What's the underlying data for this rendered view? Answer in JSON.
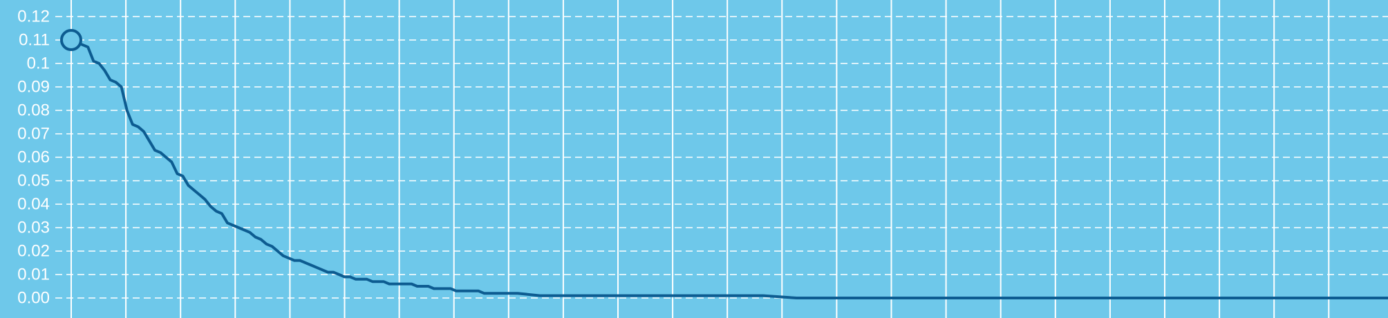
{
  "chart_data": {
    "type": "line",
    "title": "",
    "xlabel": "",
    "ylabel": "",
    "y_tick_labels": [
      "0.00",
      "0.01",
      "0.02",
      "0.03",
      "0.04",
      "0.05",
      "0.06",
      "0.07",
      "0.08",
      "0.09",
      "0.1",
      "0.11",
      "0.12"
    ],
    "ylim": [
      0,
      0.12
    ],
    "xlim": [
      0,
      236
    ],
    "x_gridline_count": 24,
    "grid": true,
    "legend": "none",
    "colors": {
      "background": "#6ec8ea",
      "grid": "#ffffff",
      "line": "#0d5c91",
      "tick_text": "#ffffff"
    },
    "series": [
      {
        "marker_start": true,
        "x": [
          0,
          2,
          3,
          4,
          5,
          6,
          7,
          8,
          9,
          10,
          11,
          12,
          13,
          14,
          15,
          16,
          17,
          18,
          19,
          20,
          21,
          22,
          23,
          24,
          25,
          26,
          27,
          28,
          29,
          30,
          31,
          32,
          33,
          34,
          35,
          36,
          37,
          38,
          39,
          40,
          41,
          42,
          43,
          44,
          45,
          46,
          47,
          48,
          49,
          50,
          51,
          52,
          53,
          54,
          55,
          56,
          57,
          58,
          59,
          60,
          61,
          62,
          63,
          64,
          65,
          66,
          67,
          68,
          69,
          70,
          71,
          72,
          73,
          74,
          75,
          76,
          77,
          78,
          79,
          80,
          84,
          88,
          90,
          92,
          96,
          100,
          104,
          108,
          112,
          116,
          120,
          124,
          130,
          136,
          142,
          148,
          154,
          160,
          170,
          180,
          190,
          200,
          210,
          220,
          230,
          236
        ],
        "y": [
          0.11,
          0.108,
          0.107,
          0.101,
          0.1,
          0.097,
          0.093,
          0.092,
          0.09,
          0.08,
          0.074,
          0.073,
          0.071,
          0.067,
          0.063,
          0.062,
          0.06,
          0.058,
          0.053,
          0.052,
          0.048,
          0.046,
          0.044,
          0.042,
          0.039,
          0.037,
          0.036,
          0.032,
          0.031,
          0.03,
          0.029,
          0.028,
          0.026,
          0.025,
          0.023,
          0.022,
          0.02,
          0.018,
          0.017,
          0.016,
          0.016,
          0.015,
          0.014,
          0.013,
          0.012,
          0.011,
          0.011,
          0.01,
          0.009,
          0.009,
          0.008,
          0.008,
          0.008,
          0.007,
          0.007,
          0.007,
          0.006,
          0.006,
          0.006,
          0.006,
          0.006,
          0.005,
          0.005,
          0.005,
          0.004,
          0.004,
          0.004,
          0.004,
          0.003,
          0.003,
          0.003,
          0.003,
          0.003,
          0.002,
          0.002,
          0.002,
          0.002,
          0.002,
          0.002,
          0.002,
          0.001,
          0.001,
          0.001,
          0.001,
          0.001,
          0.001,
          0.001,
          0.001,
          0.001,
          0.001,
          0.001,
          0.001,
          0.0,
          0.0,
          0.0,
          0.0,
          0.0,
          0.0,
          0.0,
          0.0,
          0.0,
          0.0,
          0.0,
          0.0,
          0.0,
          0.0
        ]
      }
    ]
  }
}
